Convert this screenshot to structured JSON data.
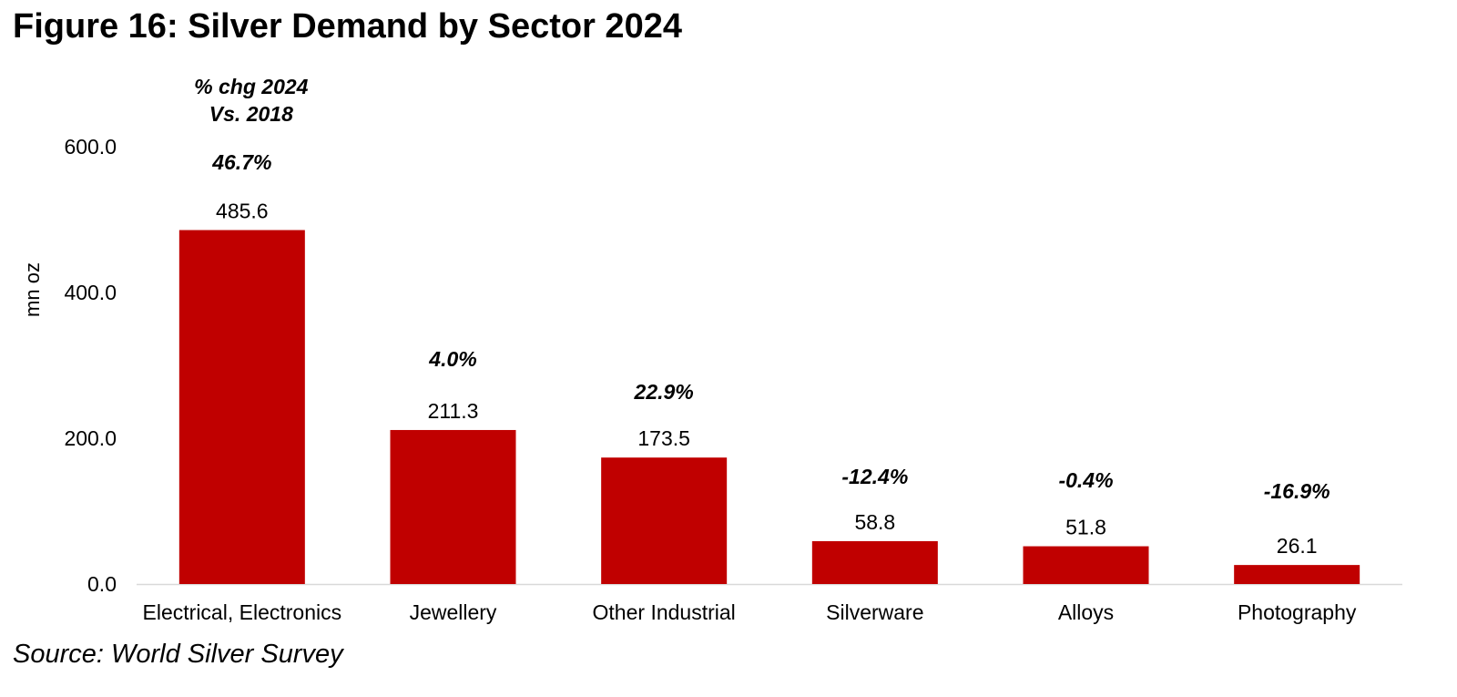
{
  "title": "Figure 16: Silver Demand by Sector 2024",
  "source": "Source: World Silver Survey",
  "colors": {
    "bar": "#C00000",
    "axis": "#D9D9D9"
  },
  "chart_data": {
    "type": "bar",
    "title": "Figure 16: Silver Demand by Sector 2024",
    "xlabel": "",
    "ylabel": "mn oz",
    "ylim": [
      0,
      600
    ],
    "yticks": [
      "0.0",
      "200.0",
      "400.0",
      "600.0"
    ],
    "ytick_values": [
      0,
      200,
      400,
      600
    ],
    "grid": false,
    "categories": [
      "Electrical, Electronics",
      "Jewellery",
      "Other Industrial",
      "Silverware",
      "Alloys",
      "Photography"
    ],
    "values": [
      485.6,
      211.3,
      173.5,
      58.8,
      51.8,
      26.1
    ],
    "value_labels": [
      "485.6",
      "211.3",
      "173.5",
      "58.8",
      "51.8",
      "26.1"
    ],
    "annotation_header": [
      "% chg 2024",
      "Vs. 2018"
    ],
    "pct_change_labels": [
      "46.7%",
      "4.0%",
      "22.9%",
      "-12.4%",
      "-0.4%",
      "-16.9%"
    ],
    "pct_change": [
      46.7,
      4.0,
      22.9,
      -12.4,
      -0.4,
      -16.9
    ]
  }
}
